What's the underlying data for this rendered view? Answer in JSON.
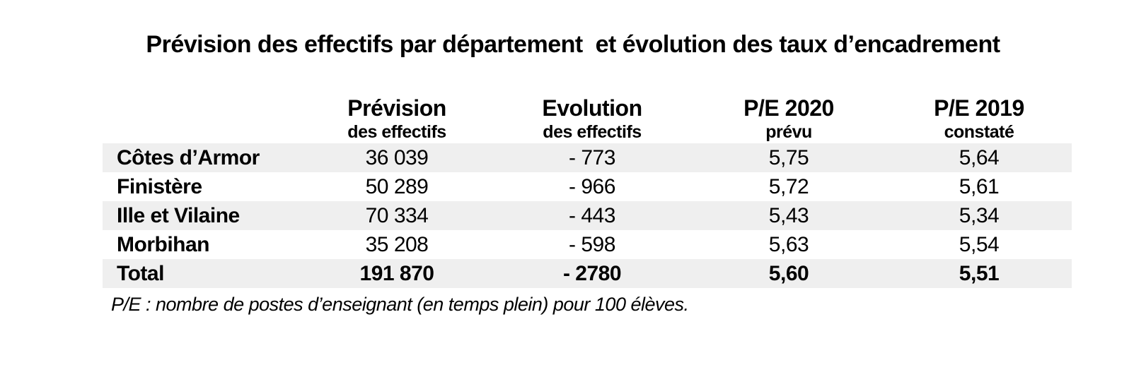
{
  "title": "Prévision des effectifs par département  et évolution des taux d’encadrement",
  "table": {
    "columns": [
      {
        "line1": "",
        "line2": ""
      },
      {
        "line1": "Prévision",
        "line2": "des effectifs"
      },
      {
        "line1": "Evolution",
        "line2": "des effectifs"
      },
      {
        "line1": "P/E 2020",
        "line2": "prévu"
      },
      {
        "line1": "P/E 2019",
        "line2": "constaté"
      }
    ],
    "rows": [
      {
        "label": "Côtes d’Armor",
        "prevision": "36 039",
        "evolution": "- 773",
        "pe2020": "5,75",
        "pe2019": "5,64",
        "shaded": true,
        "bold": false
      },
      {
        "label": "Finistère",
        "prevision": "50 289",
        "evolution": "- 966",
        "pe2020": "5,72",
        "pe2019": "5,61",
        "shaded": false,
        "bold": false
      },
      {
        "label": "Ille et Vilaine",
        "prevision": "70 334",
        "evolution": "- 443",
        "pe2020": "5,43",
        "pe2019": "5,34",
        "shaded": true,
        "bold": false
      },
      {
        "label": "Morbihan",
        "prevision": "35 208",
        "evolution": "- 598",
        "pe2020": "5,63",
        "pe2019": "5,54",
        "shaded": false,
        "bold": false
      },
      {
        "label": "Total",
        "prevision": "191 870",
        "evolution": "- 2780",
        "pe2020": "5,60",
        "pe2019": "5,51",
        "shaded": true,
        "bold": true
      }
    ]
  },
  "footnote": "P/E : nombre de postes d’enseignant (en temps plein) pour 100 élèves.",
  "colors": {
    "row_shade": "#efefef",
    "text": "#000000",
    "background": "#ffffff"
  }
}
